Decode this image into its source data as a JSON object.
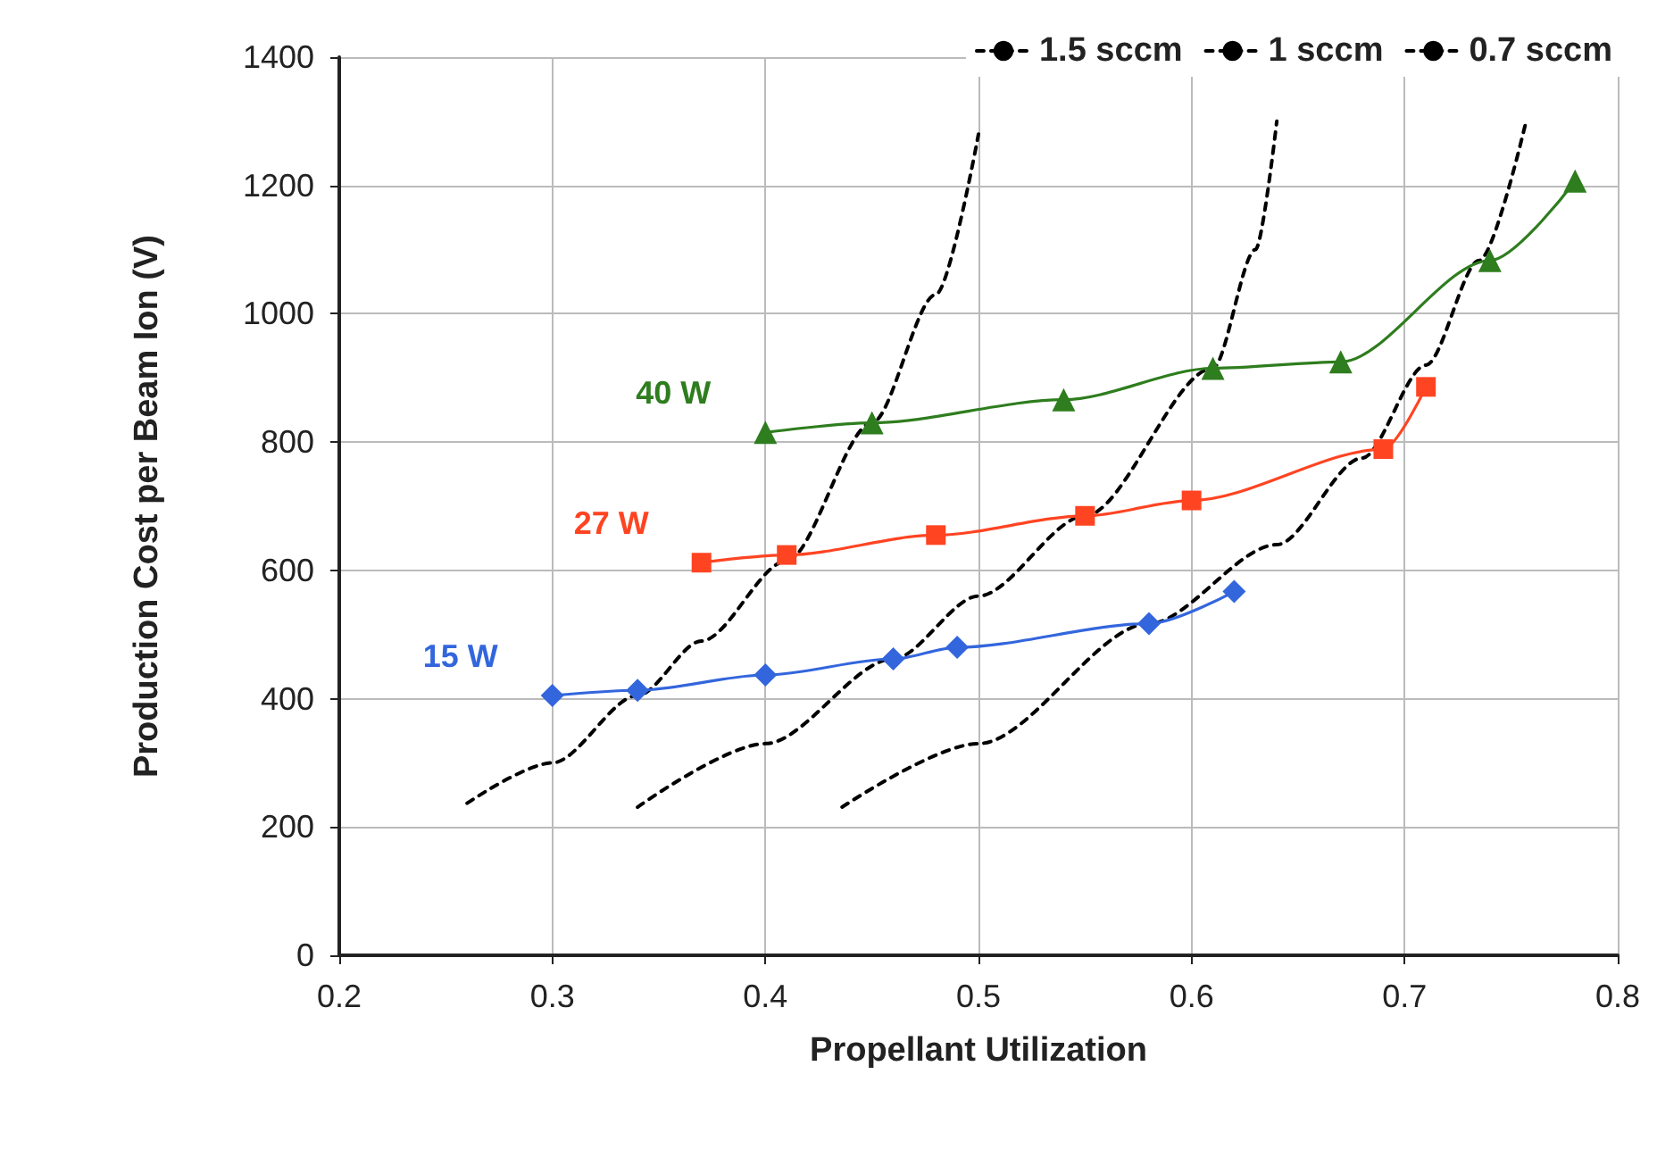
{
  "chart_data": {
    "type": "line",
    "xlabel": "Propellant Utilization",
    "ylabel": "Production Cost per Beam Ion (V)",
    "xlim": [
      0.2,
      0.8
    ],
    "xticks": [
      0.2,
      0.3,
      0.4,
      0.5,
      0.6,
      0.7,
      0.8
    ],
    "ylim": [
      0,
      1400
    ],
    "yticks": [
      0,
      200,
      400,
      600,
      800,
      1000,
      1200,
      1400
    ],
    "grid": true,
    "legend": "top right",
    "series": [
      {
        "name": "15 W",
        "color": "#3366dd",
        "marker": "diamond",
        "line_style": "solid",
        "x": [
          0.3,
          0.34,
          0.4,
          0.46,
          0.49,
          0.58,
          0.62
        ],
        "values": [
          405,
          413,
          437,
          462,
          480,
          517,
          567
        ]
      },
      {
        "name": "27 W",
        "color": "#ff4422",
        "marker": "square",
        "line_style": "solid",
        "x": [
          0.37,
          0.41,
          0.48,
          0.55,
          0.6,
          0.69,
          0.71
        ],
        "values": [
          612,
          624,
          655,
          685,
          709,
          789,
          886
        ]
      },
      {
        "name": "40 W",
        "color": "#2e7d1e",
        "marker": "triangle",
        "line_style": "solid",
        "x": [
          0.4,
          0.45,
          0.54,
          0.61,
          0.67,
          0.74,
          0.78
        ],
        "values": [
          815,
          830,
          866,
          915,
          925,
          1083,
          1207
        ]
      },
      {
        "name": "1.5 sccm",
        "color": "#000000",
        "marker": "none",
        "line_style": "dashed",
        "x": [
          0.26,
          0.3,
          0.34,
          0.37,
          0.41,
          0.45,
          0.48,
          0.5
        ],
        "values": [
          237,
          300,
          405,
          490,
          615,
          830,
          1030,
          1280
        ]
      },
      {
        "name": "1 sccm",
        "color": "#000000",
        "marker": "none",
        "line_style": "dashed",
        "x": [
          0.34,
          0.4,
          0.46,
          0.5,
          0.55,
          0.61,
          0.63,
          0.64
        ],
        "values": [
          231,
          330,
          462,
          560,
          685,
          915,
          1100,
          1300
        ]
      },
      {
        "name": "0.7 sccm",
        "color": "#000000",
        "marker": "none",
        "line_style": "dashed",
        "x": [
          0.436,
          0.5,
          0.58,
          0.64,
          0.68,
          0.71,
          0.735,
          0.757
        ],
        "values": [
          231,
          330,
          517,
          640,
          775,
          920,
          1083,
          1300
        ]
      }
    ]
  }
}
